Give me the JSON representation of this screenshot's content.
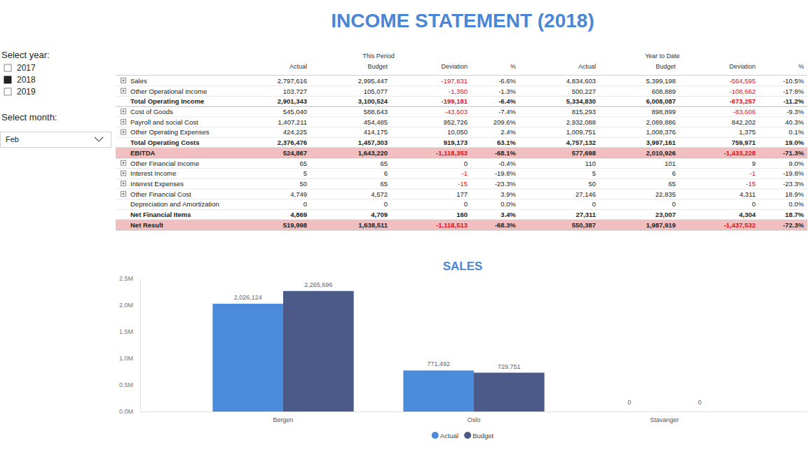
{
  "title": "INCOME STATEMENT (2018)",
  "year_slicer": {
    "label": "Select year:",
    "options": [
      "2017",
      "2018",
      "2019"
    ],
    "selected": "2018"
  },
  "month_slicer": {
    "label": "Select month:",
    "value": "Feb"
  },
  "table": {
    "groups": [
      "This Period",
      "Year to Date"
    ],
    "columns": [
      "Actual",
      "Budget",
      "Deviation",
      "%",
      "Actual",
      "Budget",
      "Deviation",
      "%"
    ],
    "rows": [
      {
        "label": "Sales",
        "expandable": true,
        "cells": [
          "2,797,616",
          "2,995,447",
          "-197,831",
          "-6.6%",
          "4,834,603",
          "5,399,198",
          "-564,595",
          "-10.5%"
        ]
      },
      {
        "label": "Other Operational Income",
        "expandable": true,
        "cells": [
          "103,727",
          "105,077",
          "-1,350",
          "-1.3%",
          "500,227",
          "608,889",
          "-108,662",
          "-17.8%"
        ]
      },
      {
        "label": "Total Operating Income",
        "bold": true,
        "cells": [
          "2,901,343",
          "3,100,524",
          "-199,181",
          "-6.4%",
          "5,334,830",
          "6,008,087",
          "-673,257",
          "-11.2%"
        ]
      },
      {
        "label": "Cost of Goods",
        "expandable": true,
        "cells": [
          "545,040",
          "588,643",
          "-43,603",
          "-7.4%",
          "815,293",
          "898,899",
          "-83,606",
          "-9.3%"
        ]
      },
      {
        "label": "Payroll and social Cost",
        "expandable": true,
        "cells": [
          "1,407,211",
          "454,485",
          "952,726",
          "209.6%",
          "2,932,088",
          "2,089,886",
          "842,202",
          "40.3%"
        ]
      },
      {
        "label": "Other Operating Expenses",
        "expandable": true,
        "cells": [
          "424,225",
          "414,175",
          "10,050",
          "2.4%",
          "1,009,751",
          "1,008,376",
          "1,375",
          "0.1%"
        ]
      },
      {
        "label": "Total Operating Costs",
        "bold": true,
        "cells": [
          "2,376,476",
          "1,457,303",
          "919,173",
          "63.1%",
          "4,757,132",
          "3,997,161",
          "759,971",
          "19.0%"
        ]
      },
      {
        "label": "EBITDA",
        "bold": true,
        "highlight": true,
        "cells": [
          "524,867",
          "1,643,220",
          "-1,118,353",
          "-68.1%",
          "577,698",
          "2,010,926",
          "-1,433,228",
          "-71.3%"
        ]
      },
      {
        "label": "Other Financial Income",
        "expandable": true,
        "cells": [
          "65",
          "65",
          "0",
          "-0.4%",
          "110",
          "101",
          "9",
          "9.0%"
        ]
      },
      {
        "label": "Interest Income",
        "expandable": true,
        "cells": [
          "5",
          "6",
          "-1",
          "-19.8%",
          "5",
          "6",
          "-1",
          "-19.8%"
        ]
      },
      {
        "label": "Interest Expenses",
        "expandable": true,
        "cells": [
          "50",
          "65",
          "-15",
          "-23.3%",
          "50",
          "65",
          "-15",
          "-23.3%"
        ]
      },
      {
        "label": "Other Financial Cost",
        "expandable": true,
        "cells": [
          "4,749",
          "4,572",
          "177",
          "3.9%",
          "27,146",
          "22,835",
          "4,311",
          "18.9%"
        ]
      },
      {
        "label": "Depreciation and Amortization",
        "cells": [
          "0",
          "0",
          "0",
          "0.0%",
          "0",
          "0",
          "0",
          "0.0%"
        ]
      },
      {
        "label": "Net Financial Items",
        "bold": true,
        "cells": [
          "4,869",
          "4,709",
          "160",
          "3.4%",
          "27,311",
          "23,007",
          "4,304",
          "18.7%"
        ]
      },
      {
        "label": "Net Result",
        "bold": true,
        "highlight": true,
        "cells": [
          "519,998",
          "1,638,511",
          "-1,118,513",
          "-68.3%",
          "550,387",
          "1,987,919",
          "-1,437,532",
          "-72.3%"
        ]
      }
    ]
  },
  "chart_data": {
    "type": "bar",
    "title": "SALES",
    "categories": [
      "Bergen",
      "Oslo",
      "Stavanger"
    ],
    "series": [
      {
        "name": "Actual",
        "color": "#4a8bdb",
        "values": [
          2026124,
          771492,
          0
        ],
        "value_labels": [
          "2,026,124",
          "771,492",
          "0"
        ]
      },
      {
        "name": "Budget",
        "color": "#4b5a88",
        "values": [
          2265696,
          729751,
          0
        ],
        "value_labels": [
          "2,265,696",
          "729,751",
          "0"
        ]
      }
    ],
    "ylim": [
      0,
      2500000
    ],
    "yticks": [
      {
        "value": 0,
        "label": "0.0M"
      },
      {
        "value": 500000,
        "label": "0.5M"
      },
      {
        "value": 1000000,
        "label": "1.0M"
      },
      {
        "value": 1500000,
        "label": "1.5M"
      },
      {
        "value": 2000000,
        "label": "2.0M"
      },
      {
        "value": 2500000,
        "label": "2.5M"
      }
    ],
    "grid": false,
    "legend": "bottom",
    "data_labels": true
  }
}
